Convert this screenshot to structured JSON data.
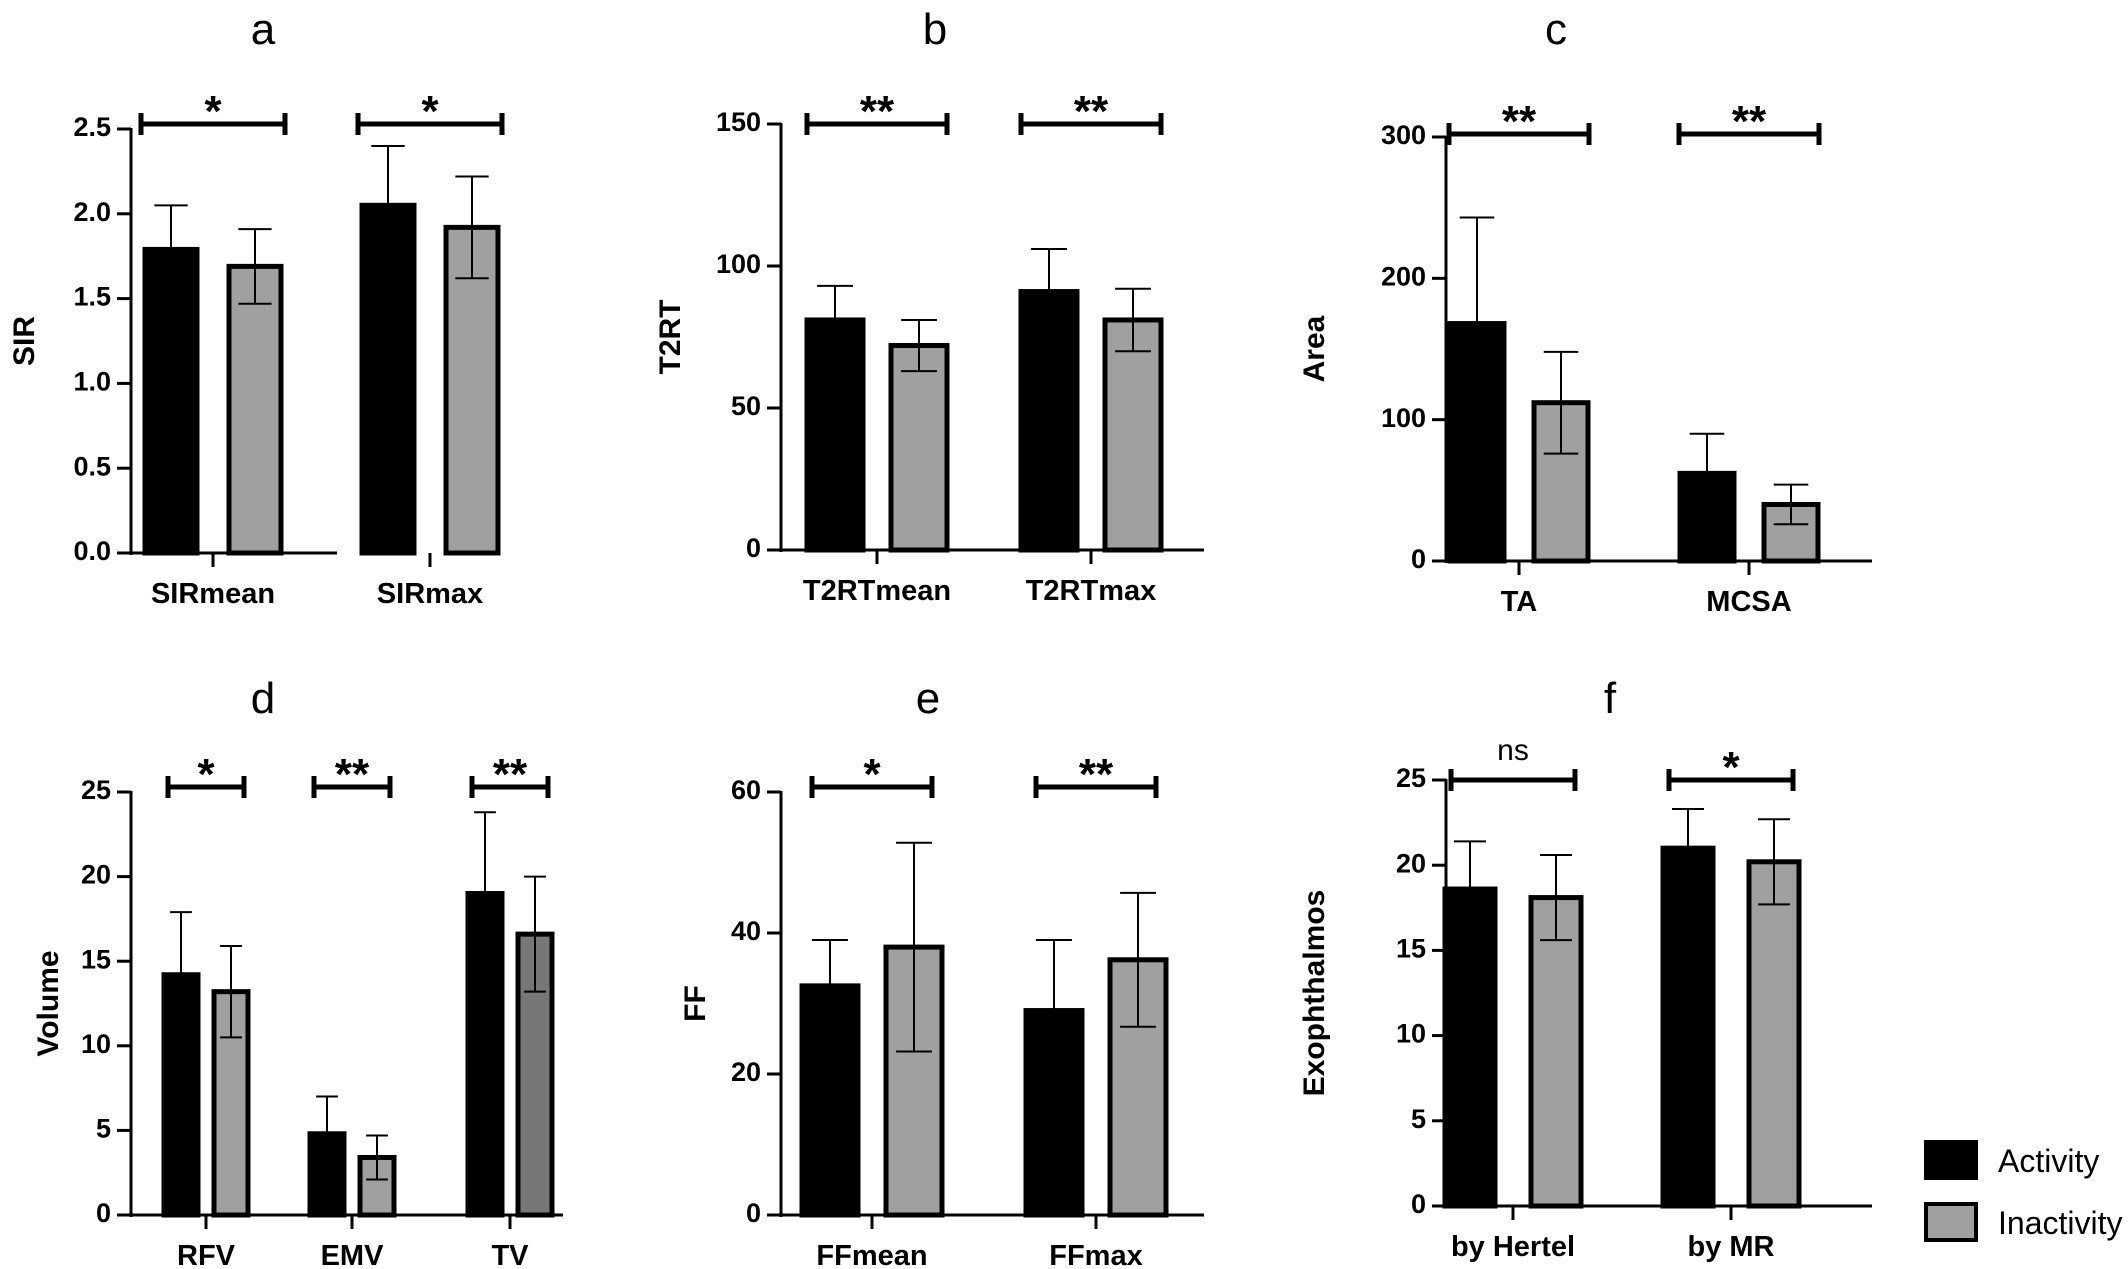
{
  "colors": {
    "activity": "#000000",
    "inactivity": "#a0a0a0",
    "inactivity_dark": "#777777",
    "axis": "#000000"
  },
  "legend": {
    "position": "bottom-right",
    "items": [
      {
        "label": "Activity",
        "color": "#000000"
      },
      {
        "label": "Inactivity",
        "color": "#a0a0a0"
      }
    ]
  },
  "chart_data": [
    {
      "panel": "a",
      "type": "bar",
      "ylabel": "SIR",
      "ylim": [
        0,
        2.5
      ],
      "yticks": [
        0,
        0.5,
        1.0,
        1.5,
        2.0,
        2.5
      ],
      "ytick_labels": [
        "0.0",
        "0.5",
        "1.0",
        "1.5",
        "2.0",
        "2.5"
      ],
      "categories": [
        "SIRmean",
        "SIRmax"
      ],
      "series": [
        {
          "name": "Activity",
          "values": [
            1.79,
            2.05
          ],
          "errors": [
            0.26,
            0.35
          ]
        },
        {
          "name": "Inactivity",
          "values": [
            1.69,
            1.92
          ],
          "errors": [
            0.22,
            0.3
          ]
        }
      ],
      "significance": [
        "*",
        "*"
      ]
    },
    {
      "panel": "b",
      "type": "bar",
      "ylabel": "T2RT",
      "ylim": [
        0,
        150
      ],
      "yticks": [
        0,
        50,
        100,
        150
      ],
      "ytick_labels": [
        "0",
        "50",
        "100",
        "150"
      ],
      "categories": [
        "T2RTmean",
        "T2RTmax"
      ],
      "series": [
        {
          "name": "Activity",
          "values": [
            81,
            91
          ],
          "errors": [
            12,
            15
          ]
        },
        {
          "name": "Inactivity",
          "values": [
            72,
            81
          ],
          "errors": [
            9,
            11
          ]
        }
      ],
      "significance": [
        "**",
        "**"
      ]
    },
    {
      "panel": "c",
      "type": "bar",
      "ylabel": "Area",
      "ylim": [
        0,
        300
      ],
      "yticks": [
        0,
        100,
        200,
        300
      ],
      "ytick_labels": [
        "0",
        "100",
        "200",
        "300"
      ],
      "categories": [
        "TA",
        "MCSA"
      ],
      "series": [
        {
          "name": "Activity",
          "values": [
            168,
            62
          ],
          "errors": [
            75,
            28
          ]
        },
        {
          "name": "Inactivity",
          "values": [
            112,
            40
          ],
          "errors": [
            36,
            14
          ]
        }
      ],
      "significance": [
        "**",
        "**"
      ]
    },
    {
      "panel": "d",
      "type": "bar",
      "ylabel": "Volume",
      "ylim": [
        0,
        25
      ],
      "yticks": [
        0,
        5,
        10,
        15,
        20,
        25
      ],
      "ytick_labels": [
        "0",
        "5",
        "10",
        "15",
        "20",
        "25"
      ],
      "categories": [
        "RFV",
        "EMV",
        "TV"
      ],
      "series": [
        {
          "name": "Activity",
          "values": [
            14.2,
            4.8,
            19.0
          ],
          "errors": [
            3.7,
            2.2,
            4.8
          ]
        },
        {
          "name": "Inactivity",
          "values": [
            13.2,
            3.4,
            16.6
          ],
          "errors": [
            2.7,
            1.3,
            3.4
          ]
        }
      ],
      "significance": [
        "*",
        "**",
        "**"
      ]
    },
    {
      "panel": "e",
      "type": "bar",
      "ylabel": "FF",
      "ylim": [
        0,
        60
      ],
      "yticks": [
        0,
        20,
        40,
        60
      ],
      "ytick_labels": [
        "0",
        "20",
        "40",
        "60"
      ],
      "categories": [
        "FFmean",
        "FFmax"
      ],
      "series": [
        {
          "name": "Activity",
          "values": [
            32.5,
            29.0
          ],
          "errors": [
            6.5,
            10.0
          ]
        },
        {
          "name": "Inactivity",
          "values": [
            38.0,
            36.2
          ],
          "errors": [
            14.8,
            9.5
          ]
        }
      ],
      "significance": [
        "*",
        "**"
      ]
    },
    {
      "panel": "f",
      "type": "bar",
      "ylabel": "Exophthalmos",
      "ylim": [
        0,
        25
      ],
      "yticks": [
        0,
        5,
        10,
        15,
        20,
        25
      ],
      "ytick_labels": [
        "0",
        "5",
        "10",
        "15",
        "20",
        "25"
      ],
      "categories": [
        "by Hertel",
        "by MR"
      ],
      "series": [
        {
          "name": "Activity",
          "values": [
            18.6,
            21.0
          ],
          "errors": [
            2.8,
            2.3
          ]
        },
        {
          "name": "Inactivity",
          "values": [
            18.1,
            20.2
          ],
          "errors": [
            2.5,
            2.5
          ]
        }
      ],
      "significance": [
        "ns",
        "*"
      ]
    }
  ]
}
